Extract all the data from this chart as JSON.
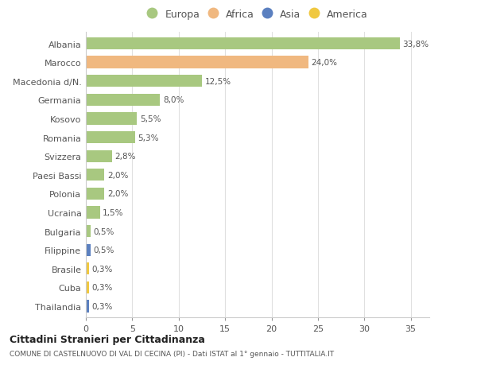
{
  "countries": [
    "Albania",
    "Marocco",
    "Macedonia d/N.",
    "Germania",
    "Kosovo",
    "Romania",
    "Svizzera",
    "Paesi Bassi",
    "Polonia",
    "Ucraina",
    "Bulgaria",
    "Filippine",
    "Brasile",
    "Cuba",
    "Thailandia"
  ],
  "values": [
    33.8,
    24.0,
    12.5,
    8.0,
    5.5,
    5.3,
    2.8,
    2.0,
    2.0,
    1.5,
    0.5,
    0.5,
    0.3,
    0.3,
    0.3
  ],
  "labels": [
    "33,8%",
    "24,0%",
    "12,5%",
    "8,0%",
    "5,5%",
    "5,3%",
    "2,8%",
    "2,0%",
    "2,0%",
    "1,5%",
    "0,5%",
    "0,5%",
    "0,3%",
    "0,3%",
    "0,3%"
  ],
  "continents": [
    "Europa",
    "Africa",
    "Europa",
    "Europa",
    "Europa",
    "Europa",
    "Europa",
    "Europa",
    "Europa",
    "Europa",
    "Europa",
    "Asia",
    "America",
    "America",
    "Asia"
  ],
  "colors": {
    "Europa": "#a8c880",
    "Africa": "#f0b880",
    "Asia": "#5b80c0",
    "America": "#f0c840"
  },
  "legend_labels": [
    "Europa",
    "Africa",
    "Asia",
    "America"
  ],
  "legend_colors": [
    "#a8c880",
    "#f0b880",
    "#5b80c0",
    "#f0c840"
  ],
  "title1": "Cittadini Stranieri per Cittadinanza",
  "title2": "COMUNE DI CASTELNUOVO DI VAL DI CECINA (PI) - Dati ISTAT al 1° gennaio - TUTTITALIA.IT",
  "xlim": [
    0,
    37
  ],
  "xticks": [
    0,
    5,
    10,
    15,
    20,
    25,
    30,
    35
  ],
  "bg_color": "#ffffff",
  "grid_color": "#e0e0e0"
}
